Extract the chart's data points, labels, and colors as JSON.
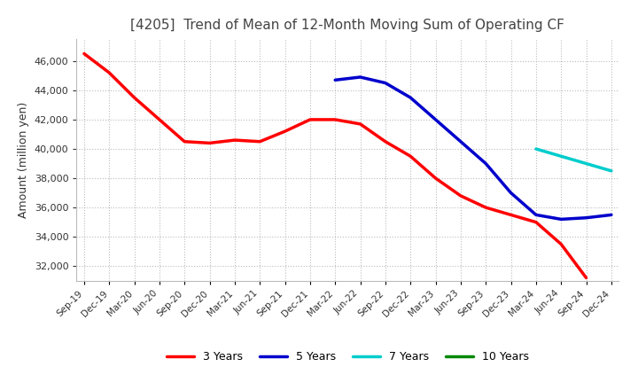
{
  "title": "[4205]  Trend of Mean of 12-Month Moving Sum of Operating CF",
  "ylabel": "Amount (million yen)",
  "x_labels": [
    "Sep-19",
    "Dec-19",
    "Mar-20",
    "Jun-20",
    "Sep-20",
    "Dec-20",
    "Mar-21",
    "Jun-21",
    "Sep-21",
    "Dec-21",
    "Mar-22",
    "Jun-22",
    "Sep-22",
    "Dec-22",
    "Mar-23",
    "Jun-23",
    "Sep-23",
    "Dec-23",
    "Mar-24",
    "Jun-24",
    "Sep-24",
    "Dec-24"
  ],
  "series": {
    "3 Years": {
      "color": "#ff0000",
      "values": [
        46500,
        45200,
        43500,
        42000,
        40500,
        40400,
        40600,
        40500,
        41200,
        42000,
        42000,
        41700,
        40500,
        39500,
        38000,
        36800,
        36000,
        35500,
        35000,
        33500,
        31200,
        null
      ]
    },
    "5 Years": {
      "color": "#0000cc",
      "values": [
        null,
        null,
        null,
        null,
        null,
        null,
        null,
        null,
        null,
        null,
        44700,
        44900,
        44500,
        43500,
        42000,
        40500,
        39000,
        37000,
        35500,
        35200,
        35300,
        35500
      ]
    },
    "7 Years": {
      "color": "#00cccc",
      "values": [
        null,
        null,
        null,
        null,
        null,
        null,
        null,
        null,
        null,
        null,
        null,
        null,
        null,
        null,
        null,
        null,
        null,
        null,
        40000,
        39500,
        39000,
        38500
      ]
    },
    "10 Years": {
      "color": "#008800",
      "values": [
        null,
        null,
        null,
        null,
        null,
        null,
        null,
        null,
        null,
        null,
        null,
        null,
        null,
        null,
        null,
        null,
        null,
        null,
        null,
        null,
        null,
        null
      ]
    }
  },
  "ylim": [
    31000,
    47500
  ],
  "yticks": [
    32000,
    34000,
    36000,
    38000,
    40000,
    42000,
    44000,
    46000
  ],
  "background_color": "#ffffff",
  "grid_color": "#aaaaaa",
  "title_fontsize": 11,
  "title_color": "#444444"
}
